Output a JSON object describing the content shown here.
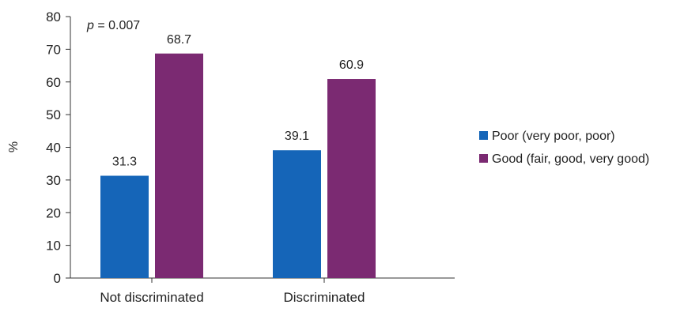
{
  "chart_data": {
    "type": "bar",
    "title": "",
    "xlabel": "",
    "ylabel": "%",
    "ylim": [
      0,
      80
    ],
    "yticks": [
      0,
      10,
      20,
      30,
      40,
      50,
      60,
      70,
      80
    ],
    "grid": false,
    "legend_position": "right",
    "categories": [
      "Not discriminated",
      "Discriminated"
    ],
    "series": [
      {
        "name": "Poor (very poor, poor)",
        "values": [
          31.3,
          39.1
        ],
        "color": "#1565b8"
      },
      {
        "name": "Good (fair, good, very good)",
        "values": [
          68.7,
          60.9
        ],
        "color": "#7b2a72"
      }
    ],
    "data_labels": [
      [
        "31.3",
        "39.1"
      ],
      [
        "68.7",
        "60.9"
      ]
    ],
    "annotation": {
      "prefix": "p",
      "text": " = 0.007"
    }
  }
}
